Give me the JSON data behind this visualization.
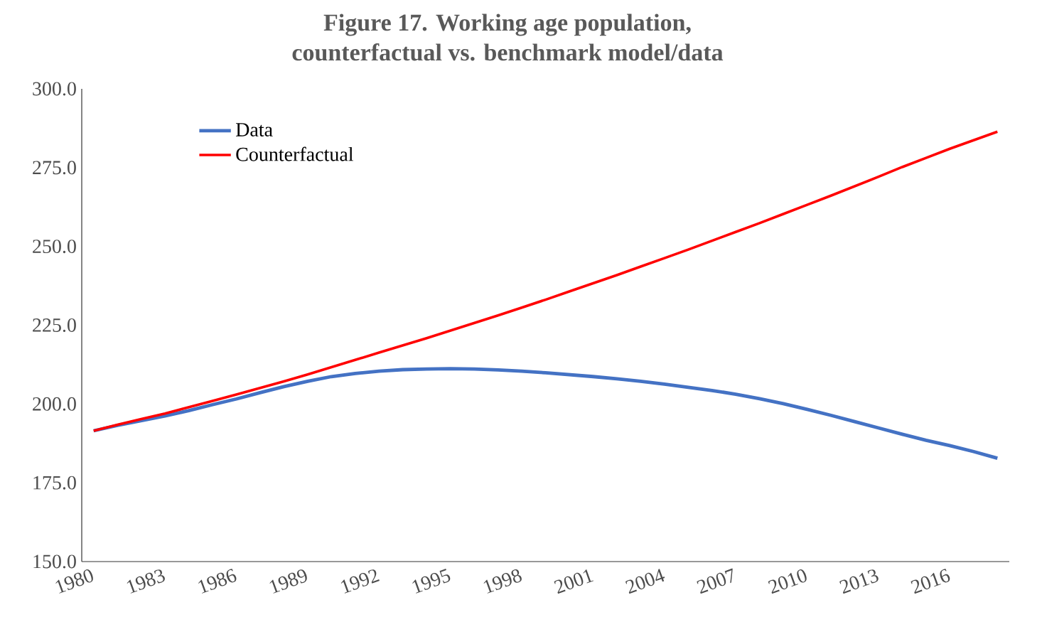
{
  "chart_data": {
    "type": "line",
    "title": "Figure 17. Working age population,\ncounterfactual vs. benchmark model/data",
    "categories": [
      "1980",
      null,
      null,
      "1983",
      null,
      null,
      "1986",
      null,
      null,
      "1989",
      null,
      null,
      "1992",
      null,
      null,
      "1995",
      null,
      null,
      "1998",
      null,
      null,
      "2001",
      null,
      null,
      "2004",
      null,
      null,
      "2007",
      null,
      null,
      "2010",
      null,
      null,
      "2013",
      null,
      null,
      "2016",
      null,
      null
    ],
    "series": [
      {
        "name": "Data",
        "color": "#4472c4",
        "values": [
          191.5,
          193.2,
          194.7,
          196.2,
          197.9,
          199.8,
          201.6,
          203.6,
          205.5,
          207.2,
          208.7,
          209.7,
          210.4,
          210.9,
          211.1,
          211.2,
          211.1,
          210.8,
          210.4,
          209.9,
          209.3,
          208.7,
          208.0,
          207.2,
          206.3,
          205.3,
          204.3,
          203.1,
          201.7,
          200.1,
          198.3,
          196.4,
          194.4,
          192.4,
          190.4,
          188.5,
          186.8,
          184.9,
          182.8
        ]
      },
      {
        "name": "Counterfactual",
        "color": "#ff0000",
        "values": [
          191.5,
          193.4,
          195.2,
          197.0,
          199.0,
          201.0,
          203.0,
          205.1,
          207.2,
          209.4,
          211.7,
          214.0,
          216.3,
          218.6,
          220.9,
          223.3,
          225.7,
          228.1,
          230.6,
          233.1,
          235.7,
          238.3,
          240.9,
          243.6,
          246.3,
          249.0,
          251.8,
          254.6,
          257.4,
          260.3,
          263.2,
          266.1,
          269.1,
          272.1,
          275.2,
          278.1,
          281.0,
          283.7,
          286.4
        ]
      }
    ],
    "ylim": [
      150,
      300
    ],
    "yticks": [
      {
        "value": 150,
        "label": "150.0"
      },
      {
        "value": 175,
        "label": "175.0"
      },
      {
        "value": 200,
        "label": "200.0"
      },
      {
        "value": 225,
        "label": "225.0"
      },
      {
        "value": 250,
        "label": "250.0"
      },
      {
        "value": 275,
        "label": "275.0"
      },
      {
        "value": 300,
        "label": "300.0"
      }
    ],
    "legend": "top left"
  }
}
